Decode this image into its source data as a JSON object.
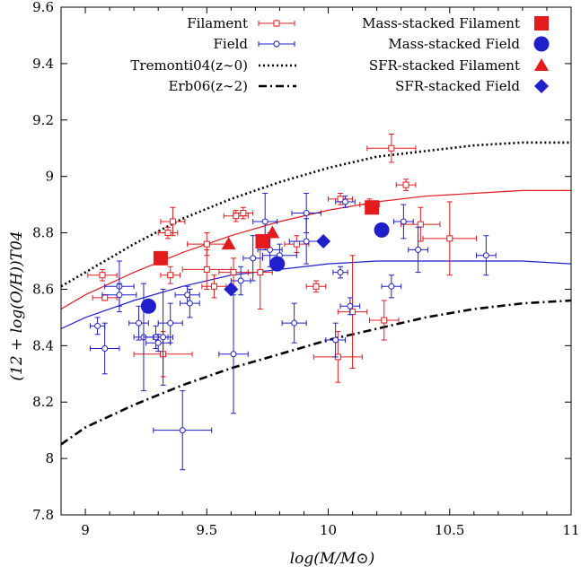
{
  "chart_data": {
    "type": "scatter",
    "xlabel": "log(M/M⊙)",
    "ylabel": "(12 + log(O/H))T04",
    "xlim": [
      8.9,
      11.0
    ],
    "ylim": [
      7.8,
      9.6
    ],
    "xticks": [
      "9",
      "9.5",
      "10",
      "10.5",
      "11"
    ],
    "xtick_values": [
      9,
      9.5,
      10,
      10.5,
      11
    ],
    "yticks": [
      "7.8",
      "8",
      "8.2",
      "8.4",
      "8.6",
      "8.8",
      "9",
      "9.2",
      "9.4",
      "9.6"
    ],
    "ytick_values": [
      7.8,
      8.0,
      8.2,
      8.4,
      8.6,
      8.8,
      9.0,
      9.2,
      9.4,
      9.6
    ],
    "grid": false,
    "legend_position": "top",
    "colors": {
      "filament": "#e41a1c",
      "field": "#1f1fcc",
      "black": "#000000"
    },
    "series": [
      {
        "name": "Filament",
        "marker": "open-square-errorbar",
        "points": [
          {
            "x": 9.07,
            "y": 8.65,
            "xerr": 0.06,
            "yerr": 0.02
          },
          {
            "x": 9.08,
            "y": 8.57,
            "xerr": 0.05,
            "yerr": 0.01
          },
          {
            "x": 9.34,
            "y": 8.8,
            "xerr": 0.04,
            "yerr": 0.02
          },
          {
            "x": 9.36,
            "y": 8.84,
            "xerr": 0.05,
            "yerr": 0.05
          },
          {
            "x": 9.35,
            "y": 8.65,
            "xerr": 0.04,
            "yerr": 0.03
          },
          {
            "x": 9.32,
            "y": 8.37,
            "xerr": 0.12,
            "yerr": 0.08
          },
          {
            "x": 9.5,
            "y": 8.76,
            "xerr": 0.08,
            "yerr": 0.04
          },
          {
            "x": 9.5,
            "y": 8.67,
            "xerr": 0.1,
            "yerr": 0.07
          },
          {
            "x": 9.53,
            "y": 8.61,
            "xerr": 0.05,
            "yerr": 0.04
          },
          {
            "x": 9.62,
            "y": 8.86,
            "xerr": 0.05,
            "yerr": 0.02
          },
          {
            "x": 9.65,
            "y": 8.87,
            "xerr": 0.04,
            "yerr": 0.02
          },
          {
            "x": 9.61,
            "y": 8.66,
            "xerr": 0.06,
            "yerr": 0.05
          },
          {
            "x": 9.72,
            "y": 8.66,
            "xerr": 0.05,
            "yerr": 0.13
          },
          {
            "x": 9.87,
            "y": 8.76,
            "xerr": 0.05,
            "yerr": 0.03
          },
          {
            "x": 9.95,
            "y": 8.61,
            "xerr": 0.04,
            "yerr": 0.02
          },
          {
            "x": 10.05,
            "y": 8.92,
            "xerr": 0.05,
            "yerr": 0.02
          },
          {
            "x": 10.04,
            "y": 8.36,
            "xerr": 0.1,
            "yerr": 0.09
          },
          {
            "x": 10.1,
            "y": 8.52,
            "xerr": 0.06,
            "yerr": 0.2
          },
          {
            "x": 10.17,
            "y": 8.9,
            "xerr": 0.04,
            "yerr": 0.02
          },
          {
            "x": 10.23,
            "y": 8.49,
            "xerr": 0.06,
            "yerr": 0.07
          },
          {
            "x": 10.26,
            "y": 9.1,
            "xerr": 0.1,
            "yerr": 0.05
          },
          {
            "x": 10.32,
            "y": 8.97,
            "xerr": 0.04,
            "yerr": 0.02
          },
          {
            "x": 10.38,
            "y": 8.83,
            "xerr": 0.08,
            "yerr": 0.06
          },
          {
            "x": 10.5,
            "y": 8.78,
            "xerr": 0.11,
            "yerr": 0.13
          }
        ]
      },
      {
        "name": "Field",
        "marker": "open-circle-errorbar",
        "points": [
          {
            "x": 9.05,
            "y": 8.47,
            "xerr": 0.03,
            "yerr": 0.03
          },
          {
            "x": 9.08,
            "y": 8.39,
            "xerr": 0.06,
            "yerr": 0.09
          },
          {
            "x": 9.14,
            "y": 8.61,
            "xerr": 0.06,
            "yerr": 0.09
          },
          {
            "x": 9.14,
            "y": 8.58,
            "xerr": 0.07,
            "yerr": 0.04
          },
          {
            "x": 9.22,
            "y": 8.48,
            "xerr": 0.04,
            "yerr": 0.06
          },
          {
            "x": 9.24,
            "y": 8.43,
            "xerr": 0.04,
            "yerr": 0.19
          },
          {
            "x": 9.29,
            "y": 8.43,
            "xerr": 0.05,
            "yerr": 0.04
          },
          {
            "x": 9.3,
            "y": 8.41,
            "xerr": 0.05,
            "yerr": 0.03
          },
          {
            "x": 9.32,
            "y": 8.43,
            "xerr": 0.04,
            "yerr": 0.17
          },
          {
            "x": 9.35,
            "y": 8.48,
            "xerr": 0.05,
            "yerr": 0.07
          },
          {
            "x": 9.4,
            "y": 8.1,
            "xerr": 0.12,
            "yerr": 0.14
          },
          {
            "x": 9.42,
            "y": 8.58,
            "xerr": 0.05,
            "yerr": 0.03
          },
          {
            "x": 9.43,
            "y": 8.55,
            "xerr": 0.04,
            "yerr": 0.05
          },
          {
            "x": 9.61,
            "y": 8.37,
            "xerr": 0.06,
            "yerr": 0.21
          },
          {
            "x": 9.64,
            "y": 8.63,
            "xerr": 0.04,
            "yerr": 0.05
          },
          {
            "x": 9.69,
            "y": 8.71,
            "xerr": 0.04,
            "yerr": 0.08
          },
          {
            "x": 9.74,
            "y": 8.84,
            "xerr": 0.05,
            "yerr": 0.1
          },
          {
            "x": 9.76,
            "y": 8.74,
            "xerr": 0.05,
            "yerr": 0.06
          },
          {
            "x": 9.8,
            "y": 8.72,
            "xerr": 0.07,
            "yerr": 0.04
          },
          {
            "x": 9.86,
            "y": 8.48,
            "xerr": 0.05,
            "yerr": 0.07
          },
          {
            "x": 9.91,
            "y": 8.87,
            "xerr": 0.06,
            "yerr": 0.07
          },
          {
            "x": 9.91,
            "y": 8.77,
            "xerr": 0.07,
            "yerr": 0.08
          },
          {
            "x": 10.03,
            "y": 8.42,
            "xerr": 0.04,
            "yerr": 0.06
          },
          {
            "x": 10.05,
            "y": 8.66,
            "xerr": 0.03,
            "yerr": 0.02
          },
          {
            "x": 10.07,
            "y": 8.91,
            "xerr": 0.04,
            "yerr": 0.02
          },
          {
            "x": 10.09,
            "y": 8.54,
            "xerr": 0.04,
            "yerr": 0.03
          },
          {
            "x": 10.26,
            "y": 8.61,
            "xerr": 0.04,
            "yerr": 0.04
          },
          {
            "x": 10.31,
            "y": 8.84,
            "xerr": 0.04,
            "yerr": 0.06
          },
          {
            "x": 10.37,
            "y": 8.74,
            "xerr": 0.04,
            "yerr": 0.08
          },
          {
            "x": 10.65,
            "y": 8.72,
            "xerr": 0.04,
            "yerr": 0.07
          }
        ]
      },
      {
        "name": "Mass-stacked Filament",
        "marker": "filled-square",
        "points": [
          {
            "x": 9.31,
            "y": 8.71
          },
          {
            "x": 9.73,
            "y": 8.77
          },
          {
            "x": 10.18,
            "y": 8.89
          }
        ]
      },
      {
        "name": "Mass-stacked Field",
        "marker": "filled-circle",
        "points": [
          {
            "x": 9.26,
            "y": 8.54
          },
          {
            "x": 9.79,
            "y": 8.69
          },
          {
            "x": 10.22,
            "y": 8.81
          }
        ]
      },
      {
        "name": "SFR-stacked Filament",
        "marker": "filled-triangle",
        "points": [
          {
            "x": 9.59,
            "y": 8.76
          },
          {
            "x": 9.77,
            "y": 8.8
          }
        ]
      },
      {
        "name": "SFR-stacked Field",
        "marker": "filled-diamond",
        "points": [
          {
            "x": 9.6,
            "y": 8.6
          },
          {
            "x": 9.98,
            "y": 8.77
          }
        ]
      }
    ],
    "curves": [
      {
        "name": "Tremonti04(z∼0)",
        "style": "dotted",
        "points": [
          [
            8.9,
            8.61
          ],
          [
            9.0,
            8.66
          ],
          [
            9.2,
            8.76
          ],
          [
            9.4,
            8.85
          ],
          [
            9.6,
            8.92
          ],
          [
            9.8,
            8.98
          ],
          [
            10.0,
            9.03
          ],
          [
            10.2,
            9.07
          ],
          [
            10.4,
            9.09
          ],
          [
            10.6,
            9.11
          ],
          [
            10.8,
            9.12
          ],
          [
            11.0,
            9.12
          ]
        ]
      },
      {
        "name": "Erb06(z∼2)",
        "style": "dash-dot",
        "points": [
          [
            8.9,
            8.05
          ],
          [
            9.0,
            8.11
          ],
          [
            9.2,
            8.19
          ],
          [
            9.4,
            8.26
          ],
          [
            9.6,
            8.32
          ],
          [
            9.8,
            8.37
          ],
          [
            10.0,
            8.42
          ],
          [
            10.2,
            8.46
          ],
          [
            10.4,
            8.5
          ],
          [
            10.6,
            8.53
          ],
          [
            10.8,
            8.55
          ],
          [
            11.0,
            8.56
          ]
        ]
      },
      {
        "name": "",
        "style": "solid-red",
        "points": [
          [
            8.9,
            8.53
          ],
          [
            9.0,
            8.58
          ],
          [
            9.2,
            8.66
          ],
          [
            9.4,
            8.73
          ],
          [
            9.6,
            8.79
          ],
          [
            9.8,
            8.84
          ],
          [
            10.0,
            8.88
          ],
          [
            10.2,
            8.91
          ],
          [
            10.4,
            8.93
          ],
          [
            10.6,
            8.94
          ],
          [
            10.8,
            8.95
          ],
          [
            11.0,
            8.95
          ]
        ]
      },
      {
        "name": "",
        "style": "solid-blue",
        "points": [
          [
            8.9,
            8.46
          ],
          [
            9.0,
            8.5
          ],
          [
            9.2,
            8.56
          ],
          [
            9.4,
            8.61
          ],
          [
            9.6,
            8.65
          ],
          [
            9.8,
            8.67
          ],
          [
            10.0,
            8.69
          ],
          [
            10.2,
            8.7
          ],
          [
            10.4,
            8.7
          ],
          [
            10.6,
            8.7
          ],
          [
            10.8,
            8.7
          ],
          [
            11.0,
            8.69
          ]
        ]
      }
    ],
    "legend_left": [
      "Filament",
      "Field",
      "Tremonti04(z∼0)",
      "Erb06(z∼2)"
    ],
    "legend_right": [
      "Mass-stacked Filament",
      "Mass-stacked Field",
      "SFR-stacked Filament",
      "SFR-stacked Field"
    ]
  }
}
